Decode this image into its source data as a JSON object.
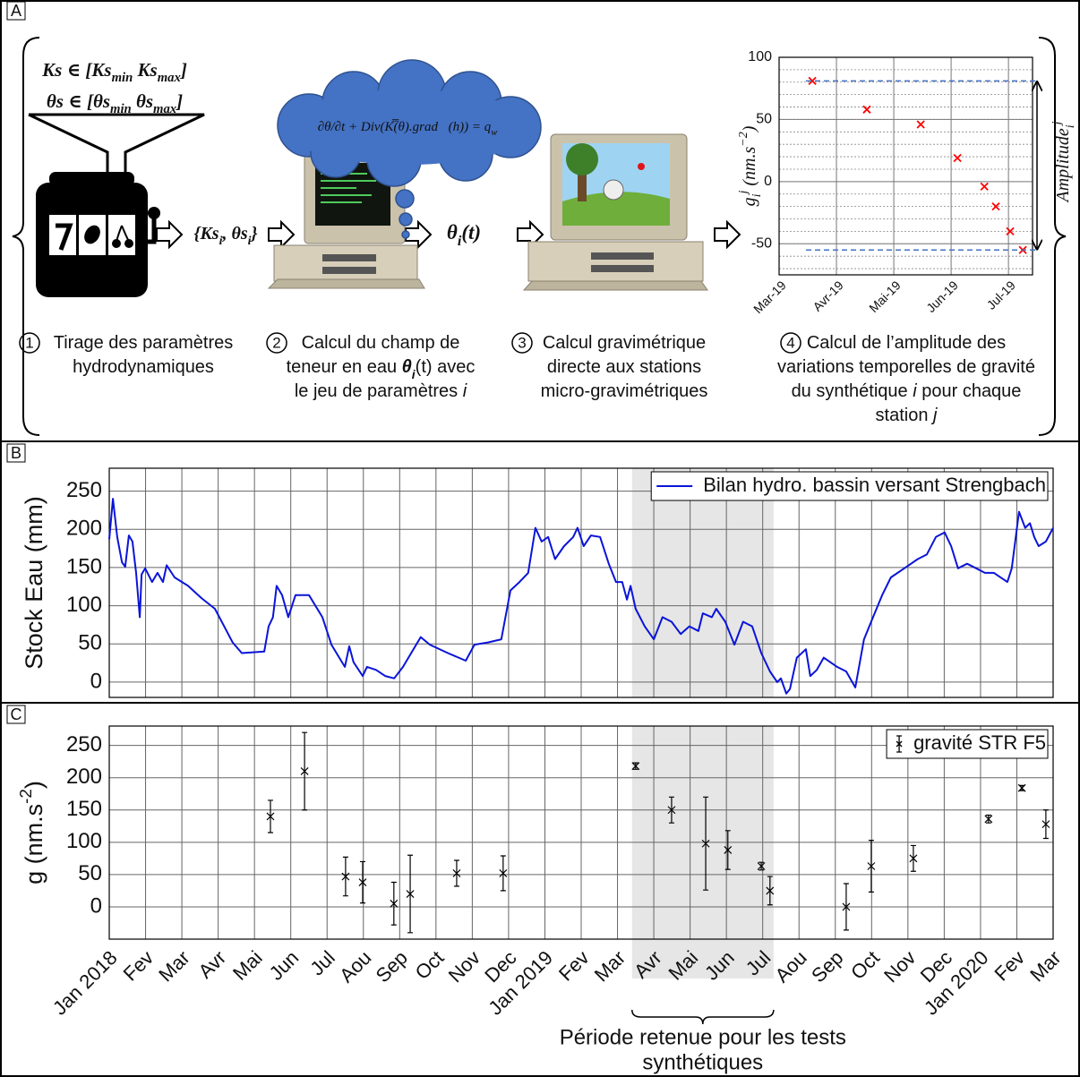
{
  "panels": [
    "A",
    "B",
    "C"
  ],
  "diagram": {
    "parameter_ranges": [
      [
        "Ks ∈ [Ks",
        {
          "text": "min",
          "sub": true
        },
        " Ks",
        {
          "text": "max",
          "sub": true
        },
        "]"
      ],
      [
        "θs ∈ [θs",
        {
          "text": "min",
          "sub": true
        },
        " θs",
        {
          "text": "max",
          "sub": true
        },
        "]"
      ]
    ],
    "drawn_parameters": [
      "{Ks",
      {
        "text": "i",
        "sub": true
      },
      ", θs",
      {
        "text": "i",
        "sub": true
      },
      "}"
    ],
    "water_content": [
      "θ",
      {
        "text": "i",
        "sub": true
      },
      "(t)"
    ],
    "equation": [
      "∂θ/∂t + Div(K̿(θ).grad⃗(h)) = q",
      {
        "text": "w",
        "sub": true
      }
    ],
    "steps": [
      {
        "number": "1",
        "lines": [
          [
            "Tirage des paramètres"
          ],
          [
            "hydrodynamiques"
          ]
        ]
      },
      {
        "number": "2",
        "lines": [
          [
            "Calcul du champ de"
          ],
          [
            "teneur en eau ",
            {
              "text": "θ",
              "bold": true,
              "italic": true
            },
            {
              "text": "i",
              "sub": true,
              "bold": true,
              "italic": true
            },
            "(t) avec"
          ],
          [
            "le jeu de paramètres ",
            {
              "text": "i",
              "italic": true
            }
          ]
        ]
      },
      {
        "number": "3",
        "lines": [
          [
            "Calcul gravimétrique"
          ],
          [
            "directe aux stations"
          ],
          [
            "micro-gravimétriques"
          ]
        ]
      },
      {
        "number": "4",
        "lines": [
          [
            "Calcul de l’amplitude des"
          ],
          [
            "variations temporelles de gravité"
          ],
          [
            "du synthétique ",
            {
              "text": "i",
              "italic": true
            },
            " pour chaque"
          ],
          [
            "station ",
            {
              "text": "j",
              "italic": true
            }
          ]
        ]
      }
    ]
  },
  "chart_data": [
    {
      "type": "scatter",
      "ylabel": [
        "g",
        {
          "text": "i",
          "sub": true
        },
        {
          "text": "j",
          "sup": true
        },
        " (nm.s",
        {
          "text": "−2",
          "sup": true
        },
        ")"
      ],
      "amplitude_label": [
        "Amplitude",
        {
          "text": "i",
          "sub": true
        },
        {
          "text": "j",
          "sup": true
        }
      ],
      "x": [
        0.58,
        1.53,
        2.47,
        3.11,
        3.58,
        3.78,
        4.03,
        4.25
      ],
      "values": [
        81,
        58,
        46,
        19,
        -4,
        -20,
        -40,
        -55
      ],
      "color": "#ff0000",
      "xlim": [
        0,
        4.42
      ],
      "xticks": [
        {
          "value": 0,
          "label": "Mar-19"
        },
        {
          "value": 1,
          "label": "Avr-19"
        },
        {
          "value": 2,
          "label": "Mai-19"
        },
        {
          "value": 3,
          "label": "Jun-19"
        },
        {
          "value": 4,
          "label": "Jul-19"
        }
      ],
      "ylim": [
        -75,
        100
      ],
      "yticks": [
        -50,
        0,
        50,
        100
      ],
      "grid": true,
      "minor_grid_step": 10
    },
    {
      "type": "line",
      "ylabel": "Stock Eau (mm)",
      "x": [
        0,
        0.1,
        0.22,
        0.35,
        0.44,
        0.54,
        0.64,
        0.74,
        0.84,
        0.89,
        0.99,
        1.18,
        1.33,
        1.48,
        1.58,
        1.8,
        2.17,
        2.54,
        2.91,
        3.4,
        3.65,
        4.27,
        4.39,
        4.51,
        4.61,
        4.76,
        4.93,
        5.13,
        5.5,
        5.87,
        6.12,
        6.49,
        6.61,
        6.73,
        6.98,
        7.1,
        7.35,
        7.6,
        7.85,
        8.09,
        8.58,
        8.83,
        9.33,
        9.82,
        10.06,
        10.43,
        10.8,
        11.05,
        11.3,
        11.54,
        11.74,
        11.91,
        12.09,
        12.28,
        12.53,
        12.78,
        12.9,
        13.07,
        13.27,
        13.52,
        13.76,
        13.96,
        14.13,
        14.26,
        14.36,
        14.5,
        14.75,
        15.0,
        15.24,
        15.49,
        15.74,
        15.98,
        16.23,
        16.35,
        16.6,
        16.72,
        16.97,
        17.22,
        17.46,
        17.71,
        17.96,
        18.2,
        18.4,
        18.5,
        18.65,
        18.75,
        18.94,
        19.19,
        19.31,
        19.49,
        19.68,
        20.05,
        20.3,
        20.55,
        20.79,
        21.04,
        21.29,
        21.53,
        21.9,
        22.27,
        22.52,
        22.77,
        23.01,
        23.19,
        23.38,
        23.63,
        23.88,
        24.12,
        24.37,
        24.74,
        24.86,
        25.06,
        25.23,
        25.36,
        25.48,
        25.6,
        25.8,
        26
      ],
      "series": [
        {
          "name": "Bilan hydro. bassin versant Strengbach",
          "color": "#0a14d8",
          "values": [
            187,
            240,
            190,
            157,
            151,
            192,
            184,
            143,
            85,
            141,
            149,
            131,
            143,
            131,
            153,
            137,
            126,
            110,
            96,
            52,
            38,
            40,
            73,
            85,
            126,
            114,
            85,
            114,
            114,
            85,
            49,
            20,
            47,
            26,
            8,
            20,
            16,
            8,
            5,
            20,
            59,
            49,
            38,
            28,
            49,
            52,
            56,
            120,
            131,
            143,
            202,
            184,
            190,
            161,
            178,
            190,
            202,
            178,
            192,
            190,
            155,
            131,
            131,
            108,
            126,
            96,
            73,
            56,
            85,
            79,
            63,
            73,
            67,
            90,
            85,
            96,
            79,
            49,
            79,
            73,
            38,
            14,
            0,
            5,
            -15,
            -9,
            32,
            43,
            8,
            16,
            32,
            20,
            14,
            -7,
            56,
            85,
            114,
            137,
            149,
            161,
            167,
            190,
            196,
            178,
            149,
            155,
            149,
            143,
            143,
            131,
            149,
            223,
            202,
            208,
            190,
            178,
            184,
            202
          ]
        }
      ],
      "xlim": [
        0,
        26
      ],
      "xticks": [
        0,
        1,
        2,
        3,
        4,
        5,
        6,
        7,
        8,
        9,
        10,
        11,
        12,
        13,
        14,
        15,
        16,
        17,
        18,
        19,
        20,
        21,
        22,
        23,
        24,
        25,
        26
      ],
      "ylim": [
        -20,
        280
      ],
      "yticks": [
        0,
        50,
        100,
        150,
        200,
        250
      ],
      "grid": true,
      "legend": "upper right",
      "shaded_period": [
        14.4,
        18.3
      ]
    },
    {
      "type": "errorbar",
      "ylabel": [
        "g (nm.s",
        {
          "text": "-2",
          "sup": true
        },
        ")"
      ],
      "x": [
        4.44,
        5.38,
        6.51,
        6.98,
        7.84,
        8.29,
        9.57,
        10.85,
        14.5,
        15.49,
        16.43,
        17.04,
        17.96,
        18.2,
        20.3,
        20.99,
        22.15,
        24.22,
        25.14,
        25.8
      ],
      "series": [
        {
          "name": "gravité STR F5",
          "color": "#000000",
          "values": [
            140,
            210,
            47,
            38,
            5,
            20,
            52,
            52,
            218,
            150,
            98,
            88,
            63,
            25,
            0,
            63,
            75,
            136,
            184,
            128
          ],
          "errors": [
            25,
            60,
            30,
            32,
            33,
            60,
            20,
            27,
            5,
            20,
            72,
            30,
            6,
            22,
            36,
            40,
            20,
            6,
            4,
            22
          ]
        }
      ],
      "xlim": [
        0,
        26
      ],
      "xticks": [
        {
          "value": 0,
          "label": "Jan 2018"
        },
        {
          "value": 1,
          "label": "Fev"
        },
        {
          "value": 2,
          "label": "Mar"
        },
        {
          "value": 3,
          "label": "Avr"
        },
        {
          "value": 4,
          "label": "Mai"
        },
        {
          "value": 5,
          "label": "Jun"
        },
        {
          "value": 6,
          "label": "Jul"
        },
        {
          "value": 7,
          "label": "Aou"
        },
        {
          "value": 8,
          "label": "Sep"
        },
        {
          "value": 9,
          "label": "Oct"
        },
        {
          "value": 10,
          "label": "Nov"
        },
        {
          "value": 11,
          "label": "Dec"
        },
        {
          "value": 12,
          "label": "Jan 2019"
        },
        {
          "value": 13,
          "label": "Fev"
        },
        {
          "value": 14,
          "label": "Mar"
        },
        {
          "value": 15,
          "label": "Avr"
        },
        {
          "value": 16,
          "label": "Mai"
        },
        {
          "value": 17,
          "label": "Jun"
        },
        {
          "value": 18,
          "label": "Jul"
        },
        {
          "value": 19,
          "label": "Aou"
        },
        {
          "value": 20,
          "label": "Sep"
        },
        {
          "value": 21,
          "label": "Oct"
        },
        {
          "value": 22,
          "label": "Nov"
        },
        {
          "value": 23,
          "label": "Dec"
        },
        {
          "value": 24,
          "label": "Jan 2020"
        },
        {
          "value": 25,
          "label": "Fev"
        },
        {
          "value": 26,
          "label": "Mar"
        }
      ],
      "ylim": [
        -50,
        280
      ],
      "yticks": [
        0,
        50,
        100,
        150,
        200,
        250
      ],
      "grid": true,
      "legend": "upper right",
      "shaded_period": [
        14.4,
        18.3
      ],
      "annotation": [
        "Période retenue pour les tests",
        "synthétiques"
      ]
    }
  ]
}
